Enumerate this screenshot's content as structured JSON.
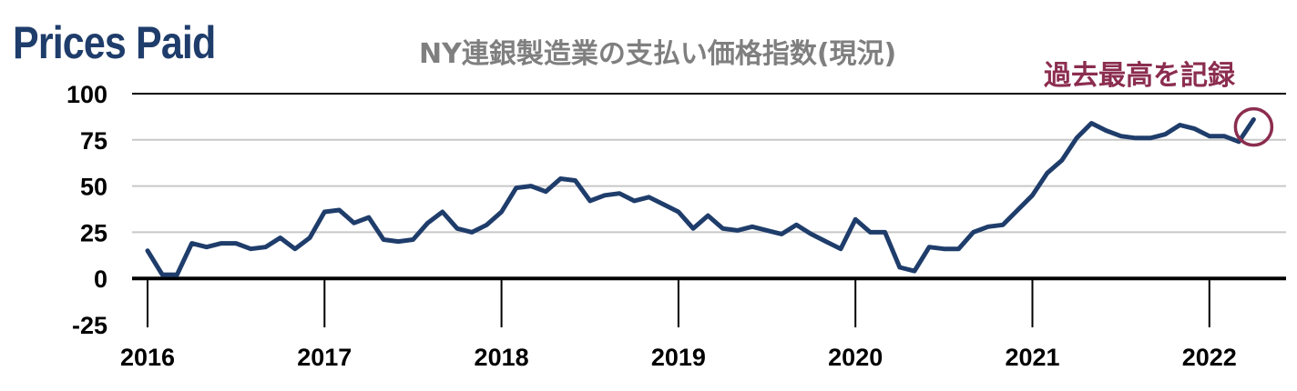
{
  "headline": "Prices Paid",
  "chart_data": {
    "type": "line",
    "title": "NY連銀製造業の支払い価格指数(現況)",
    "xlabel": "",
    "ylabel": "",
    "ylim": [
      -25,
      100
    ],
    "yticks": [
      100,
      75,
      50,
      25,
      0,
      -25
    ],
    "xticks": [
      2016,
      2017,
      2018,
      2019,
      2020,
      2021,
      2022
    ],
    "grid": true,
    "annotation": "過去最高を記録",
    "colors": {
      "line": "#1f3d6b",
      "grid": "#c8c8c8",
      "annotation": "#8b2d4f"
    },
    "series": [
      {
        "x": [
          "2016-01",
          "2016-02",
          "2016-03",
          "2016-04",
          "2016-05",
          "2016-06",
          "2016-07",
          "2016-08",
          "2016-09",
          "2016-10",
          "2016-11",
          "2016-12",
          "2017-01",
          "2017-02",
          "2017-03",
          "2017-04",
          "2017-05",
          "2017-06",
          "2017-07",
          "2017-08",
          "2017-09",
          "2017-10",
          "2017-11",
          "2017-12",
          "2018-01",
          "2018-02",
          "2018-03",
          "2018-04",
          "2018-05",
          "2018-06",
          "2018-07",
          "2018-08",
          "2018-09",
          "2018-10",
          "2018-11",
          "2018-12",
          "2019-01",
          "2019-02",
          "2019-03",
          "2019-04",
          "2019-05",
          "2019-06",
          "2019-07",
          "2019-08",
          "2019-09",
          "2019-10",
          "2019-11",
          "2019-12",
          "2020-01",
          "2020-02",
          "2020-03",
          "2020-04",
          "2020-05",
          "2020-06",
          "2020-07",
          "2020-08",
          "2020-09",
          "2020-10",
          "2020-11",
          "2020-12",
          "2021-01",
          "2021-02",
          "2021-03",
          "2021-04",
          "2021-05",
          "2021-06",
          "2021-07",
          "2021-08",
          "2021-09",
          "2021-10",
          "2021-11",
          "2021-12",
          "2022-01",
          "2022-02",
          "2022-03",
          "2022-04"
        ],
        "values": [
          15,
          2,
          2,
          19,
          17,
          19,
          19,
          16,
          17,
          22,
          16,
          22,
          36,
          37,
          30,
          33,
          21,
          20,
          21,
          30,
          36,
          27,
          25,
          29,
          36,
          49,
          50,
          47,
          54,
          53,
          42,
          45,
          46,
          42,
          44,
          40,
          36,
          27,
          34,
          27,
          26,
          28,
          26,
          24,
          29,
          24,
          20,
          16,
          32,
          25,
          25,
          6,
          4,
          17,
          16,
          16,
          25,
          28,
          29,
          37,
          45,
          57,
          64,
          76,
          84,
          80,
          77,
          76,
          76,
          78,
          83,
          81,
          77,
          77,
          74,
          86
        ]
      }
    ]
  }
}
